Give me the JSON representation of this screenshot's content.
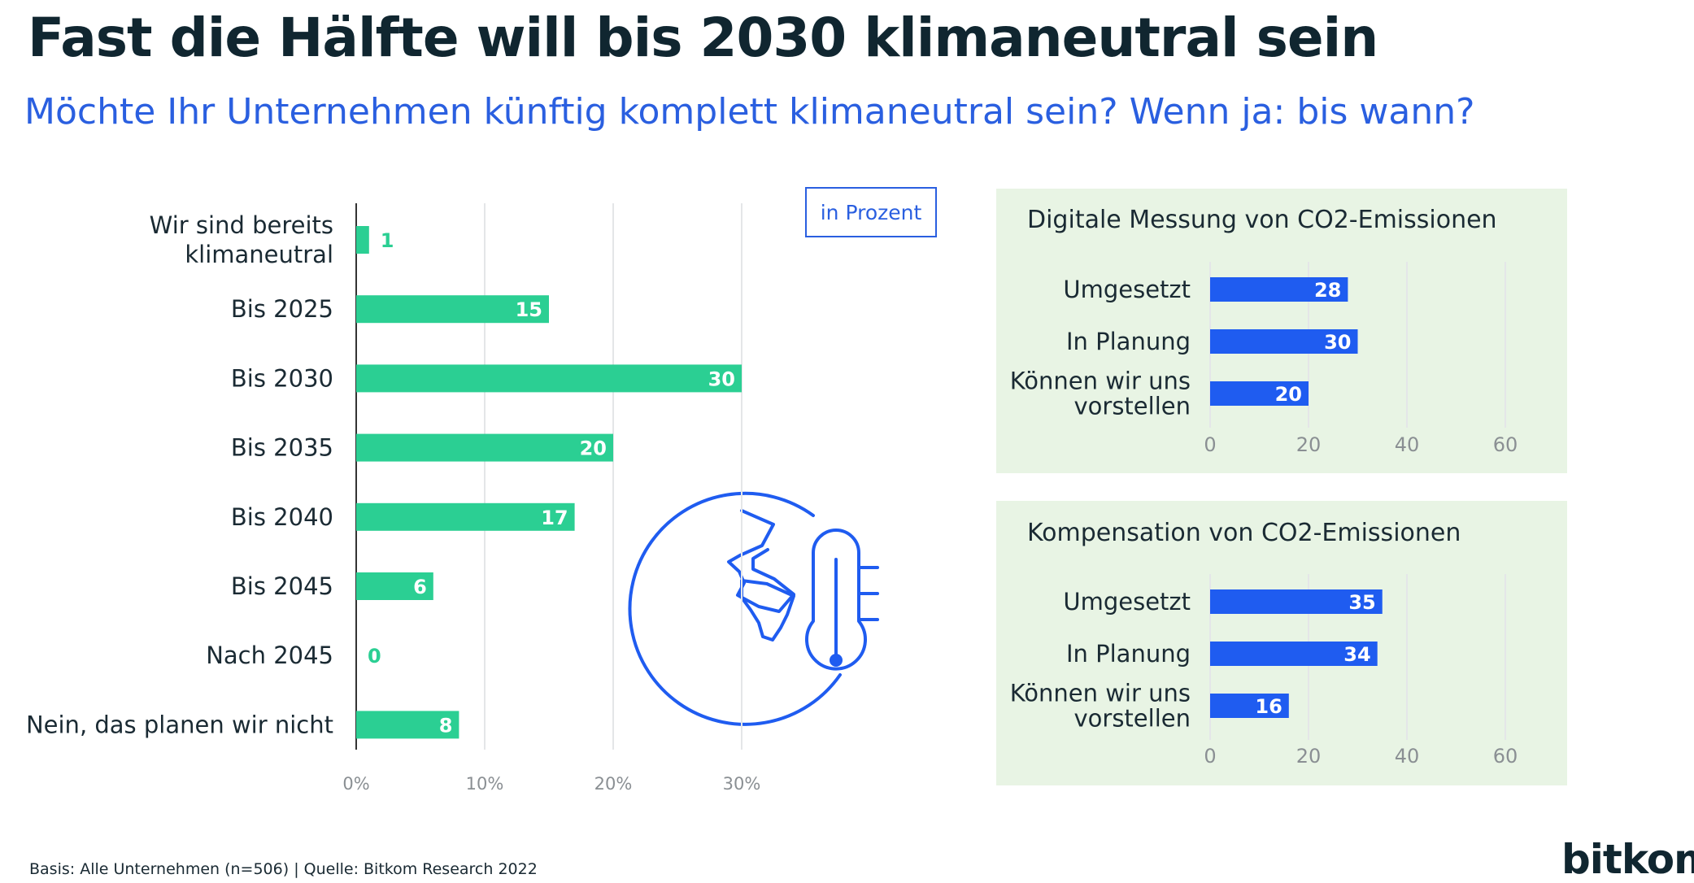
{
  "title": "Fast die Hälfte will bis 2030 klimaneutral sein",
  "subtitle": "Möchte Ihr Unternehmen künftig komplett klimaneutral sein? Wenn ja: bis wann?",
  "unit_note": "in Prozent",
  "footer": "Basis: Alle Unternehmen (n=506) | Quelle: Bitkom Research 2022",
  "logo": "bitkom",
  "icon": "globe-thermometer-icon",
  "colors": {
    "main_bar": "#2bcf93",
    "side_bar": "#1f5cf0",
    "panel_bg": "#e8f4e4",
    "accent": "#2a5fe0"
  },
  "chart_data": [
    {
      "type": "bar",
      "orientation": "horizontal",
      "categories": [
        [
          "Wir sind bereits",
          "klimaneutral"
        ],
        [
          "Bis 2025"
        ],
        [
          "Bis 2030"
        ],
        [
          "Bis 2035"
        ],
        [
          "Bis 2040"
        ],
        [
          "Bis 2045"
        ],
        [
          "Nach 2045"
        ],
        [
          "Nein, das planen wir nicht"
        ]
      ],
      "values": [
        1,
        15,
        30,
        20,
        17,
        6,
        0,
        8
      ],
      "xlim": [
        0,
        40
      ],
      "xticks": [
        "0%",
        "10%",
        "20%",
        "30%"
      ],
      "xtick_values": [
        0,
        10,
        20,
        30
      ],
      "grid": true
    },
    {
      "type": "bar",
      "orientation": "horizontal",
      "title": "Digitale Messung von CO2-Emissionen",
      "categories": [
        [
          "Umgesetzt"
        ],
        [
          "In Planung"
        ],
        [
          "Können wir uns",
          "vorstellen"
        ]
      ],
      "values": [
        28,
        30,
        20
      ],
      "xlim": [
        0,
        60
      ],
      "xticks": [
        "0",
        "20",
        "40",
        "60"
      ],
      "xtick_values": [
        0,
        20,
        40,
        60
      ],
      "grid": true
    },
    {
      "type": "bar",
      "orientation": "horizontal",
      "title": "Kompensation von CO2-Emissionen",
      "categories": [
        [
          "Umgesetzt"
        ],
        [
          "In Planung"
        ],
        [
          "Können wir uns",
          "vorstellen"
        ]
      ],
      "values": [
        35,
        34,
        16
      ],
      "xlim": [
        0,
        60
      ],
      "xticks": [
        "0",
        "20",
        "40",
        "60"
      ],
      "xtick_values": [
        0,
        20,
        40,
        60
      ],
      "grid": true
    }
  ]
}
